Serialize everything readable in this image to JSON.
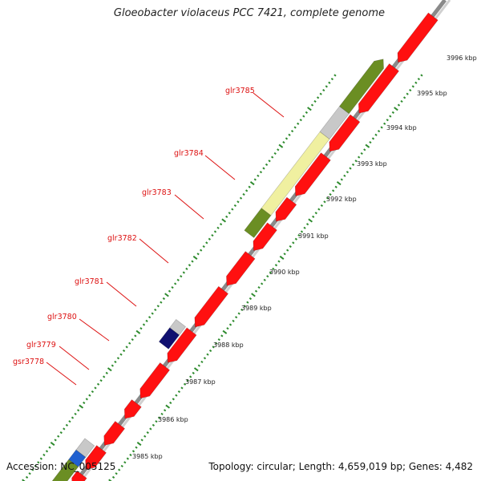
{
  "title": "Gloeobacter violaceus PCC 7421, complete genome",
  "footer": {
    "accession": "Accession: NC_005125",
    "topology": "Topology: circular; Length: 4,659,019 bp; Genes: 4,482"
  },
  "colors": {
    "gene_red": "#ff1010",
    "olive": "#6b8e23",
    "pale_yellow": "#f0f0a0",
    "light_gray": "#c8c8c8",
    "navy": "#101070",
    "blue": "#2060d0",
    "tick_green": "#2e8b2e",
    "backbone_gray": "#909090"
  },
  "kbp_labels": [
    "3985 kbp",
    "3986 kbp",
    "3987 kbp",
    "3988 kbp",
    "3989 kbp",
    "3990 kbp",
    "3991 kbp",
    "3992 kbp",
    "3993 kbp",
    "3994 kbp",
    "3995 kbp",
    "3996 kbp"
  ],
  "gene_labels": [
    "gsr3778",
    "glr3779",
    "glr3780",
    "glr3781",
    "glr3782",
    "glr3783",
    "glr3784",
    "glr3785"
  ]
}
